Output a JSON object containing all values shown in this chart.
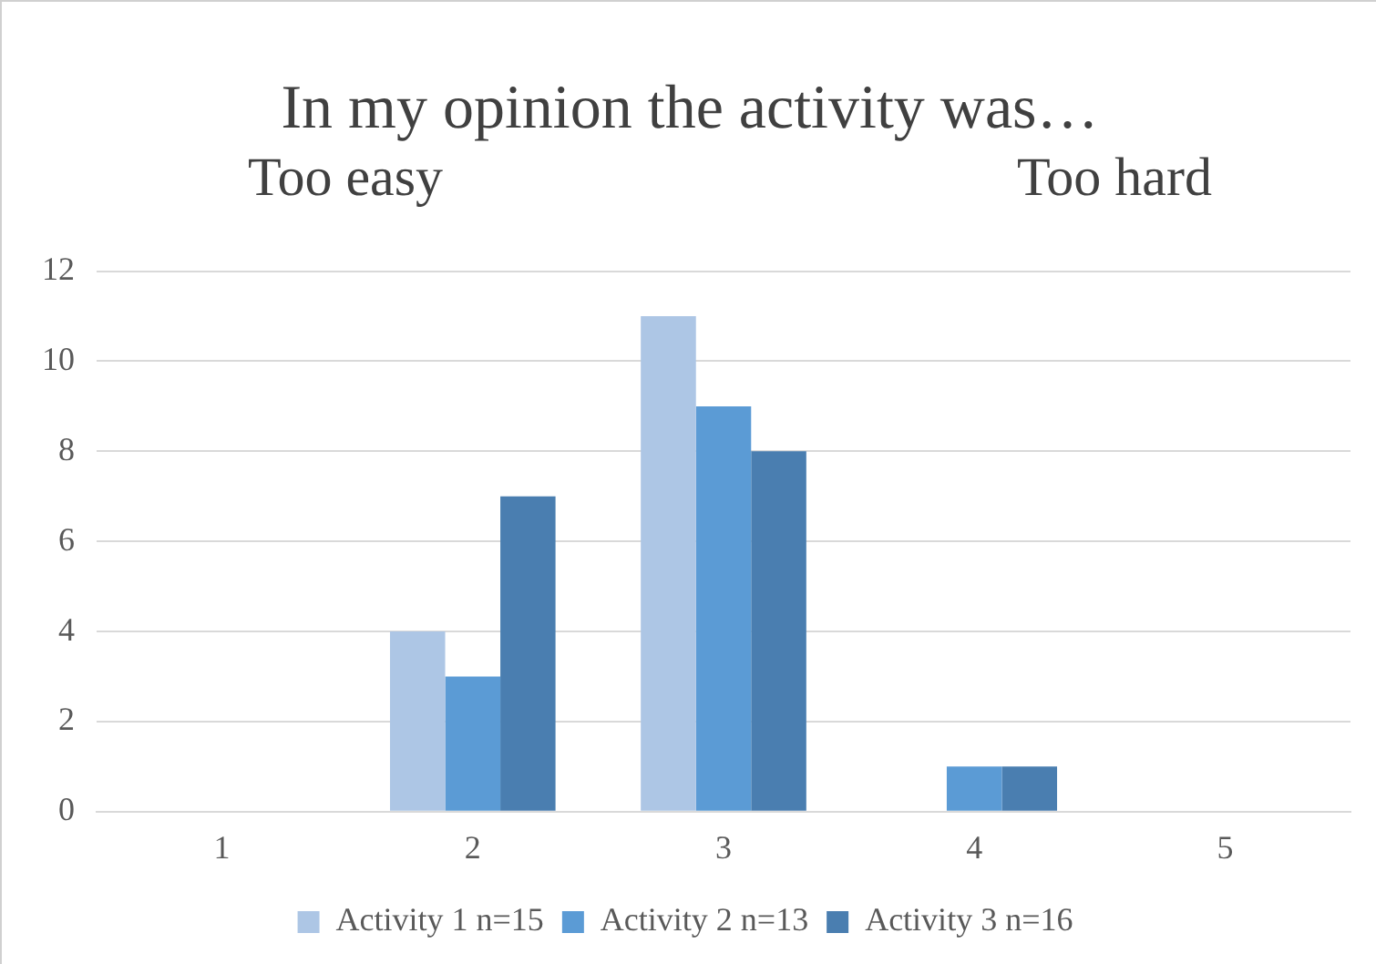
{
  "chart_data": {
    "type": "bar",
    "title": "In my opinion the activity was…",
    "annotations": [
      "Too easy",
      "Too hard"
    ],
    "categories": [
      "1",
      "2",
      "3",
      "4",
      "5"
    ],
    "series": [
      {
        "name": "Activity 1 n=15",
        "color": "#adc6e5",
        "values": [
          0,
          4,
          11,
          0,
          0
        ]
      },
      {
        "name": "Activity 2 n=13",
        "color": "#5b9bd5",
        "values": [
          0,
          3,
          9,
          1,
          0
        ]
      },
      {
        "name": "Activity 3 n=16",
        "color": "#4a7eb0",
        "values": [
          0,
          7,
          8,
          1,
          0
        ]
      }
    ],
    "ylim": [
      0,
      12
    ],
    "yticks": [
      0,
      2,
      4,
      6,
      8,
      10,
      12
    ],
    "grid": "y",
    "legend": "bottom"
  }
}
